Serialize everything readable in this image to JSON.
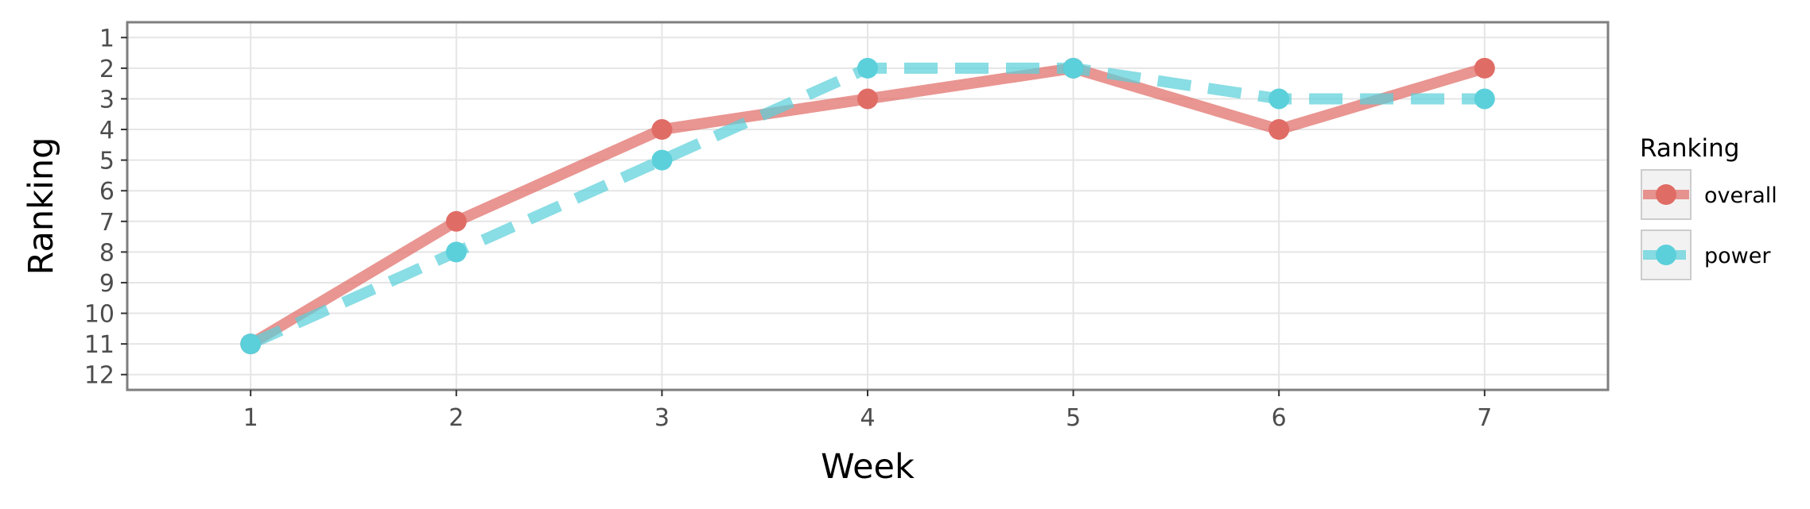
{
  "chart_data": {
    "type": "line",
    "xlabel": "Week",
    "ylabel": "Ranking",
    "x": [
      1,
      2,
      3,
      4,
      5,
      6,
      7
    ],
    "xlim": [
      0.4,
      7.6
    ],
    "ylim": [
      12.5,
      0.5
    ],
    "y_reversed": true,
    "x_ticks": [
      "1",
      "2",
      "3",
      "4",
      "5",
      "6",
      "7"
    ],
    "y_ticks": [
      "1",
      "2",
      "3",
      "4",
      "5",
      "6",
      "7",
      "8",
      "9",
      "10",
      "11",
      "12"
    ],
    "grid": true,
    "legend": {
      "title": "Ranking",
      "position": "right"
    },
    "series": [
      {
        "name": "overall",
        "values": [
          11,
          7,
          4,
          3,
          2,
          4,
          2
        ],
        "color": "#e06c66",
        "line_style": "solid"
      },
      {
        "name": "power",
        "values": [
          11,
          8,
          5,
          2,
          2,
          3,
          3
        ],
        "color": "#5bd0da",
        "line_style": "dashed"
      }
    ]
  }
}
